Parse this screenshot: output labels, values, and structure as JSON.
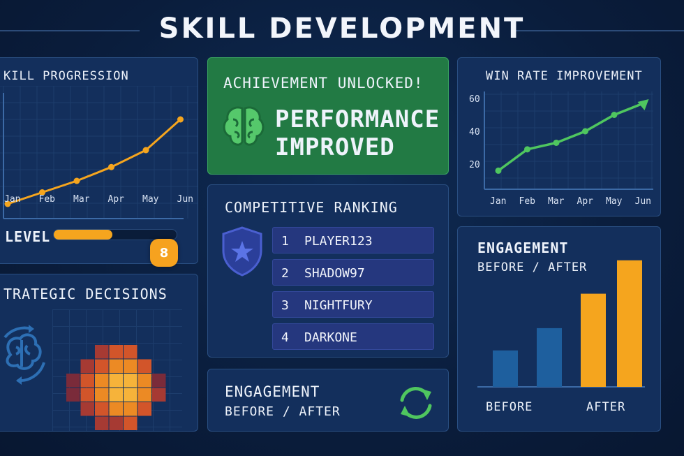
{
  "header": {
    "title": "SKILL DEVELOPMENT"
  },
  "skill_progression": {
    "title": "KILL PROGRESSION",
    "months": [
      "Jan",
      "Feb",
      "Mar",
      "Apr",
      "May",
      "Jun"
    ],
    "values": [
      10,
      25,
      40,
      58,
      80,
      120
    ],
    "line_color": "#f5a51e"
  },
  "level": {
    "label": "LEVEL",
    "value": "8",
    "progress_fraction": 0.48,
    "color": "#f5a51e"
  },
  "strategic": {
    "title": "TRATEGIC DECISIONS",
    "icon": "brain-cycle-icon",
    "heatmap": [
      [
        0,
        0,
        0,
        0,
        0,
        0,
        0
      ],
      [
        0,
        0,
        0,
        0,
        0,
        0,
        0
      ],
      [
        0,
        0,
        2,
        3,
        3,
        0,
        0
      ],
      [
        0,
        2,
        3,
        4,
        4,
        3,
        0
      ],
      [
        1,
        3,
        4,
        5,
        5,
        4,
        1
      ],
      [
        1,
        3,
        4,
        5,
        5,
        4,
        2
      ],
      [
        0,
        2,
        3,
        4,
        4,
        3,
        0
      ],
      [
        0,
        0,
        2,
        2,
        3,
        0,
        0
      ]
    ]
  },
  "achievement": {
    "heading": "ACHIEVEMENT UNLOCKED!",
    "line1": "PERFORMANCE",
    "line2": "IMPROVED",
    "icon": "brain-icon",
    "color": "#227a44"
  },
  "ranking": {
    "title": "COMPETITIVE RANKING",
    "icon": "shield-star-icon",
    "rows": [
      {
        "rank": "1",
        "name": "PLAYER123"
      },
      {
        "rank": "2",
        "name": "SHADOW97"
      },
      {
        "rank": "3",
        "name": "NIGHTFURY"
      },
      {
        "rank": "4",
        "name": "DARKONE"
      }
    ]
  },
  "engagement_small": {
    "title": "ENGAGEMENT",
    "subtitle": "BEFORE / AFTER",
    "icon": "refresh-icon"
  },
  "win_rate": {
    "title": "WIN RATE IMPROVEMENT",
    "months": [
      "Jan",
      "Feb",
      "Mar",
      "Apr",
      "May",
      "Jun"
    ],
    "yticks": [
      "60",
      "40",
      "20"
    ],
    "values": [
      16,
      29,
      33,
      40,
      50,
      57
    ],
    "line_color": "#4fc65f"
  },
  "engagement_chart": {
    "title": "ENGAGEMENT",
    "subtitle": "BEFORE / AFTER",
    "labels": [
      "BEFORE",
      "AFTER"
    ],
    "before_values": [
      36,
      58
    ],
    "after_values": [
      92,
      125
    ],
    "before_color": "#1e5f9e",
    "after_color": "#f5a51e"
  }
}
